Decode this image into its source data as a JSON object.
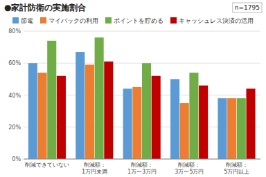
{
  "chart_data": {
    "type": "bar",
    "title": "●家計防衛の実施割合",
    "annotations": [
      "n=1795"
    ],
    "categories": [
      "削減できていない",
      "削減額：1万円未満",
      "削減額：1万〜3万円",
      "削減額：3万〜5万円",
      "削減額：5万円以上"
    ],
    "series": [
      {
        "name": "節電",
        "color": "#5b9bd5",
        "values": [
          60,
          67,
          44,
          50,
          38
        ]
      },
      {
        "name": "マイバックの利用",
        "color": "#ed7d31",
        "values": [
          54,
          59,
          45,
          35,
          38
        ]
      },
      {
        "name": "ポイントを貯める",
        "color": "#70ad47",
        "values": [
          74,
          76,
          60,
          54,
          38
        ]
      },
      {
        "name": "キャッシュレス決済の活用",
        "color": "#c00000",
        "values": [
          52,
          61,
          52,
          46,
          44
        ]
      }
    ],
    "ylim": [
      0,
      80
    ],
    "yticks": [
      {
        "value": 0,
        "label": "0%"
      },
      {
        "value": 20,
        "label": "20%"
      },
      {
        "value": 40,
        "label": "40%"
      },
      {
        "value": 60,
        "label": "60%"
      },
      {
        "value": 80,
        "label": "80%"
      }
    ],
    "grid": true,
    "legend": "top"
  }
}
